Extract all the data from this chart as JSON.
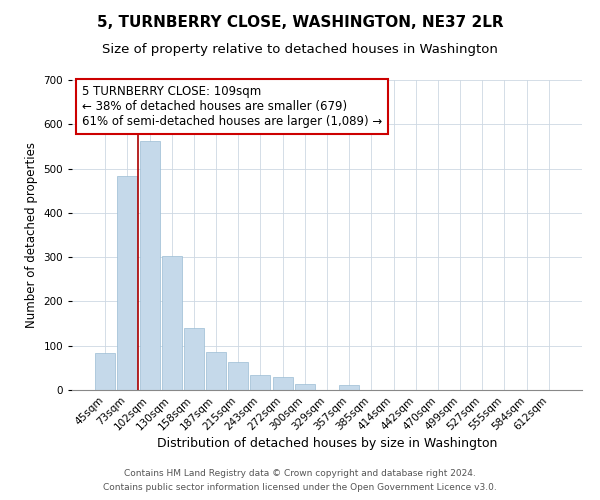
{
  "title": "5, TURNBERRY CLOSE, WASHINGTON, NE37 2LR",
  "subtitle": "Size of property relative to detached houses in Washington",
  "xlabel": "Distribution of detached houses by size in Washington",
  "ylabel": "Number of detached properties",
  "bar_color": "#c5d9ea",
  "bar_edge_color": "#9bbdd4",
  "categories": [
    "45sqm",
    "73sqm",
    "102sqm",
    "130sqm",
    "158sqm",
    "187sqm",
    "215sqm",
    "243sqm",
    "272sqm",
    "300sqm",
    "329sqm",
    "357sqm",
    "385sqm",
    "414sqm",
    "442sqm",
    "470sqm",
    "499sqm",
    "527sqm",
    "555sqm",
    "584sqm",
    "612sqm"
  ],
  "values": [
    83,
    484,
    563,
    302,
    139,
    86,
    64,
    35,
    30,
    14,
    0,
    12,
    0,
    0,
    0,
    0,
    0,
    0,
    0,
    0,
    0
  ],
  "ylim": [
    0,
    700
  ],
  "yticks": [
    0,
    100,
    200,
    300,
    400,
    500,
    600,
    700
  ],
  "vline_x_index": 2,
  "vline_color": "#aa0000",
  "annotation_line1": "5 TURNBERRY CLOSE: 109sqm",
  "annotation_line2": "← 38% of detached houses are smaller (679)",
  "annotation_line3": "61% of semi-detached houses are larger (1,089) →",
  "footer_line1": "Contains HM Land Registry data © Crown copyright and database right 2024.",
  "footer_line2": "Contains public sector information licensed under the Open Government Licence v3.0.",
  "title_fontsize": 11,
  "subtitle_fontsize": 9.5,
  "xlabel_fontsize": 9,
  "ylabel_fontsize": 8.5,
  "tick_fontsize": 7.5,
  "footer_fontsize": 6.5,
  "annotation_fontsize": 8.5
}
